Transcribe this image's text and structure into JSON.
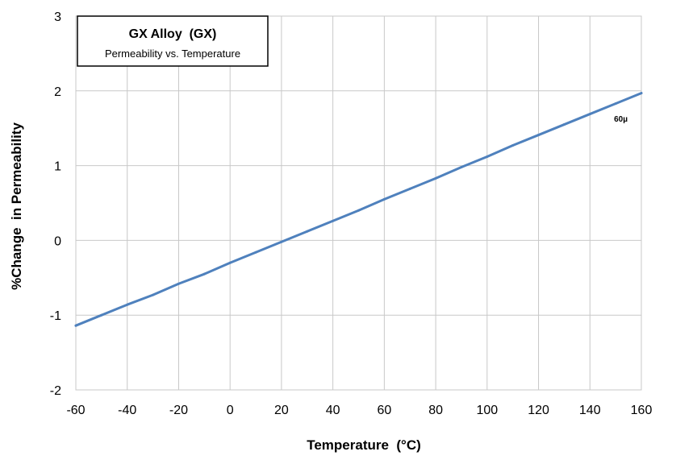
{
  "chart_data": {
    "type": "line",
    "title": "GX Alloy  (GX)",
    "subtitle": "Permeability vs. Temperature",
    "xlabel": "Temperature  (°C)",
    "ylabel": "%Change  in Permeability",
    "xlim": [
      -60,
      160
    ],
    "ylim": [
      -2,
      3
    ],
    "x_ticks": [
      "-60",
      "-40",
      "-20",
      "0",
      "20",
      "40",
      "60",
      "80",
      "100",
      "120",
      "140",
      "160"
    ],
    "y_ticks": [
      "3",
      "2",
      "1",
      "0",
      "-1",
      "-2"
    ],
    "grid": true,
    "legend": "top-left",
    "series": [
      {
        "name": "60µ",
        "color": "#4f81bd",
        "x": [
          -60,
          -50,
          -40,
          -30,
          -20,
          -10,
          0,
          10,
          20,
          30,
          40,
          50,
          60,
          70,
          80,
          90,
          100,
          110,
          120,
          130,
          140,
          150,
          160
        ],
        "y": [
          -1.14,
          -1.0,
          -0.86,
          -0.73,
          -0.58,
          -0.45,
          -0.3,
          -0.16,
          -0.02,
          0.12,
          0.26,
          0.4,
          0.55,
          0.69,
          0.83,
          0.98,
          1.12,
          1.27,
          1.41,
          1.55,
          1.69,
          1.83,
          1.97
        ]
      }
    ]
  }
}
